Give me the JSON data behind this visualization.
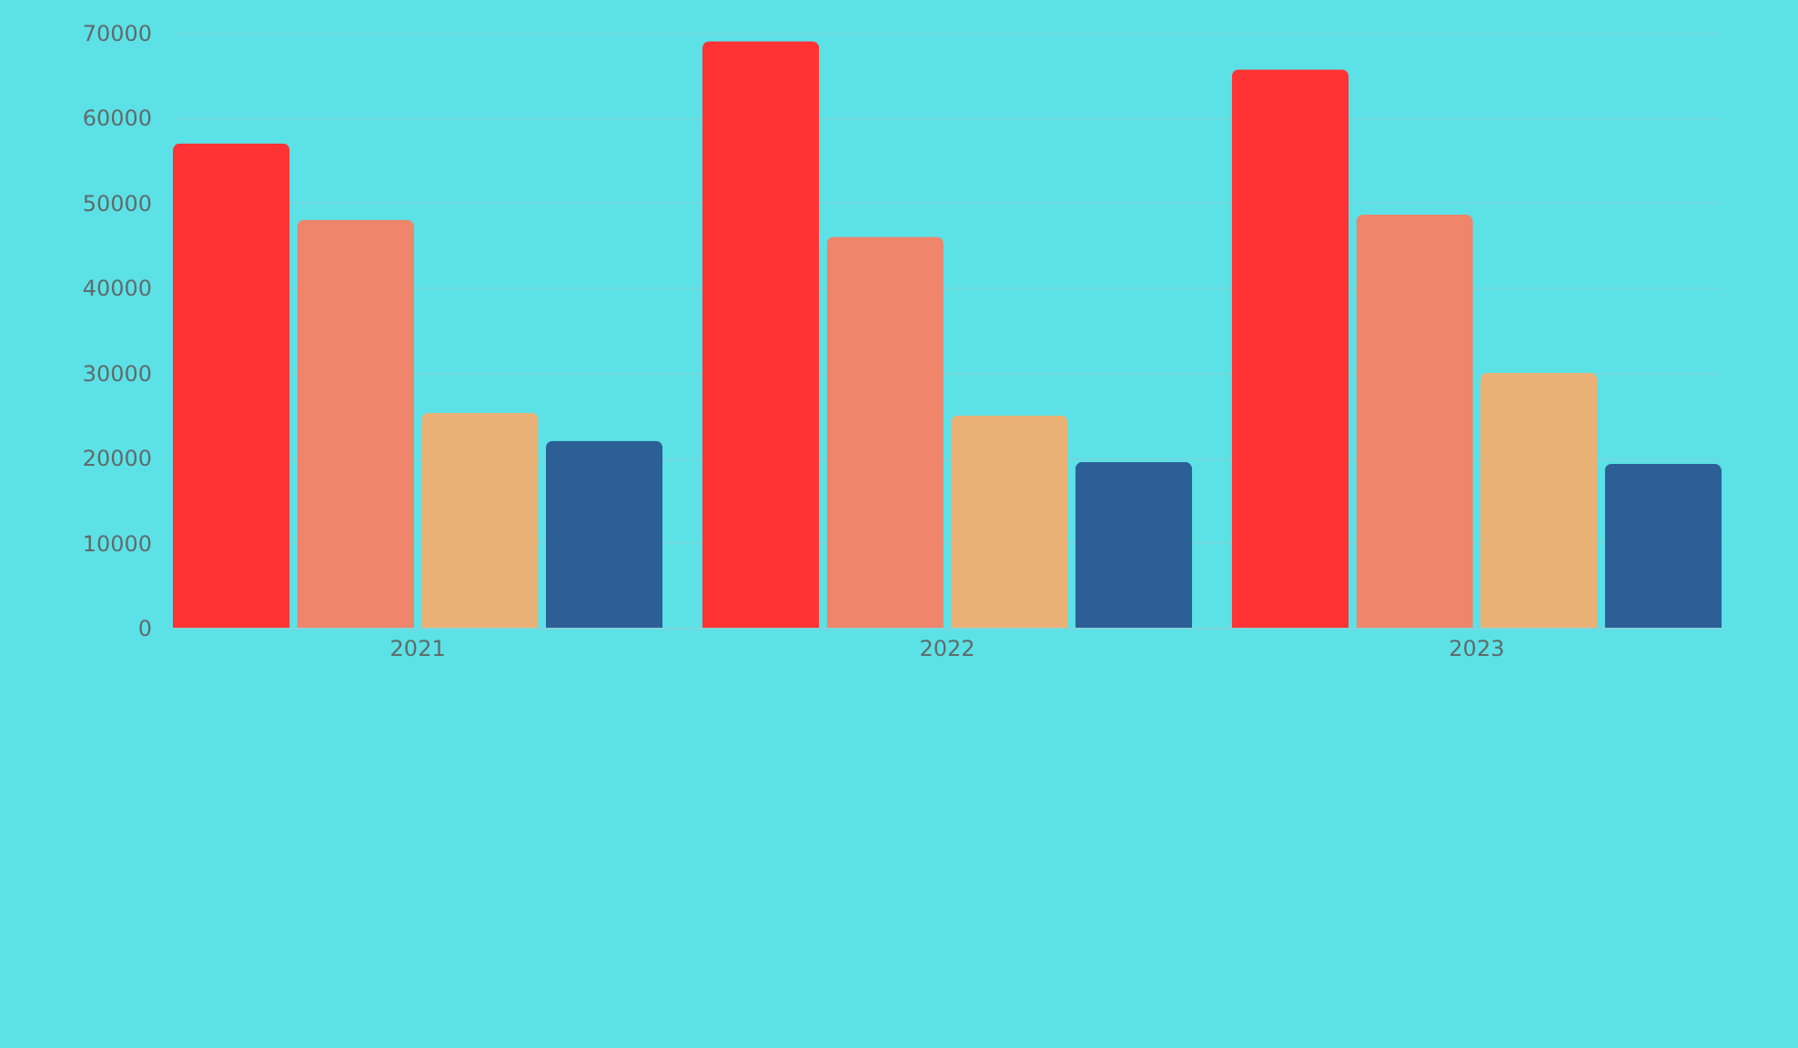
{
  "chart_data": {
    "type": "bar",
    "categories": [
      "2021",
      "2022",
      "2023"
    ],
    "series": [
      {
        "color": "#ff3333",
        "values": [
          57000,
          69000,
          65700
        ]
      },
      {
        "color": "#ef856a",
        "values": [
          48000,
          46000,
          48600
        ]
      },
      {
        "color": "#eab176",
        "values": [
          25300,
          25000,
          30000
        ]
      },
      {
        "color": "#2d5f97",
        "values": [
          22000,
          19500,
          19300
        ]
      }
    ],
    "ylim": [
      0,
      70000
    ],
    "yticks": [
      0,
      10000,
      20000,
      30000,
      40000,
      50000,
      60000,
      70000
    ],
    "grid": "y"
  }
}
